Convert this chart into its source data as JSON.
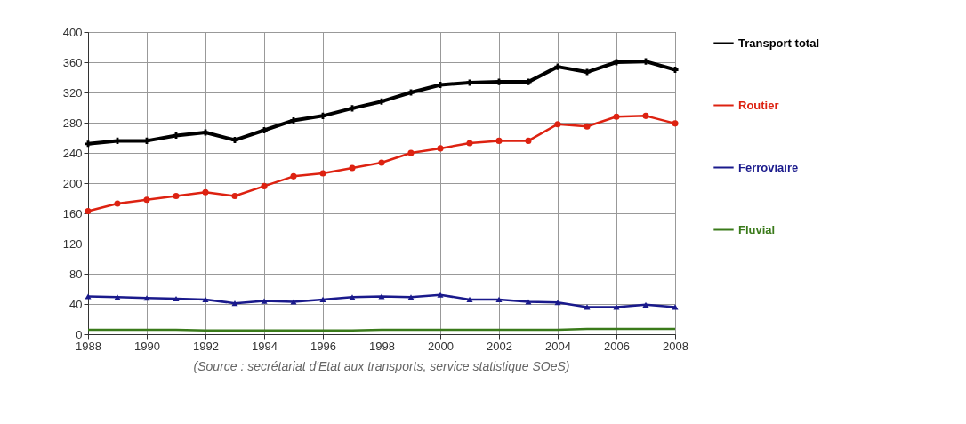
{
  "chart_data": {
    "type": "line",
    "x": [
      1988,
      1989,
      1990,
      1991,
      1992,
      1993,
      1994,
      1995,
      1996,
      1997,
      1998,
      1999,
      2000,
      2001,
      2002,
      2003,
      2004,
      2005,
      2006,
      2007,
      2008
    ],
    "series": [
      {
        "name": "Transport total",
        "color": "#000000",
        "marker": "cross",
        "values": [
          252,
          256,
          256,
          263,
          267,
          257,
          270,
          283,
          289,
          299,
          308,
          320,
          330,
          333,
          334,
          334,
          354,
          347,
          360,
          361,
          350
        ]
      },
      {
        "name": "Routier",
        "color": "#dd2211",
        "marker": "circle",
        "values": [
          163,
          173,
          178,
          183,
          188,
          183,
          196,
          209,
          213,
          220,
          227,
          240,
          246,
          253,
          256,
          256,
          278,
          275,
          288,
          289,
          279
        ]
      },
      {
        "name": "Ferroviaire",
        "color": "#1a1a8c",
        "marker": "triangle",
        "values": [
          50,
          49,
          48,
          47,
          46,
          41,
          44,
          43,
          46,
          49,
          50,
          49,
          52,
          46,
          46,
          43,
          42,
          36,
          36,
          39,
          36
        ]
      },
      {
        "name": "Fluvial",
        "color": "#3a7a1a",
        "marker": "none",
        "values": [
          6,
          6,
          6,
          6,
          5,
          5,
          5,
          5,
          5,
          5,
          6,
          6,
          6,
          6,
          6,
          6,
          6,
          7,
          7,
          7,
          7
        ]
      }
    ],
    "xlim": [
      1988,
      2008
    ],
    "xticks": [
      1988,
      1990,
      1992,
      1994,
      1996,
      1998,
      2000,
      2002,
      2004,
      2006,
      2008
    ],
    "ylim": [
      0,
      400
    ],
    "yticks": [
      0,
      40,
      80,
      120,
      160,
      200,
      240,
      280,
      320,
      360,
      400
    ],
    "grid": true,
    "legend": "right",
    "annotations": [
      "(Source : secrétariat d'Etat aux transports, service statistique SOeS)"
    ]
  }
}
